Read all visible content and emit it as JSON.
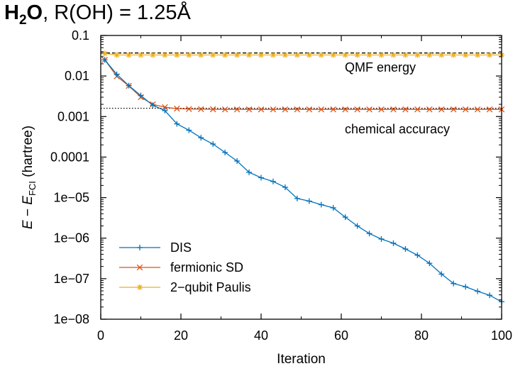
{
  "title": {
    "molecule_main": "H",
    "molecule_sub": "2",
    "molecule_tail": "O",
    "rest": ", R(OH) = 1.25Å"
  },
  "chart_data": {
    "type": "line",
    "title": "H2O, R(OH) = 1.25Å",
    "xlabel": "Iteration",
    "ylabel": "E − E_FCI (hartree)",
    "ylabel_parts": {
      "var": "E",
      "op": " − ",
      "var2": "E",
      "sub": "FCI",
      "unit": " (hartree)"
    },
    "xlim": [
      0,
      100
    ],
    "ylim": [
      1e-08,
      0.1
    ],
    "yscale": "log",
    "grid": false,
    "x_ticks": [
      0,
      20,
      40,
      60,
      80,
      100
    ],
    "x_tick_labels": [
      "0",
      "20",
      "40",
      "60",
      "80",
      "100"
    ],
    "y_ticks": [
      0.1,
      0.01,
      0.001,
      0.0001,
      1e-05,
      1e-06,
      1e-07,
      1e-08
    ],
    "y_tick_labels": [
      "0.1",
      "0.01",
      "0.001",
      "0.0001",
      "1e−05",
      "1e−06",
      "1e−07",
      "1e−08"
    ],
    "legend_position": "bottom-left",
    "reference_lines": [
      {
        "label": "QMF energy",
        "y": 0.037,
        "style": "dashed",
        "color": "#000000"
      },
      {
        "label": "chemical accuracy",
        "y": 0.0016,
        "style": "dotted",
        "color": "#000000"
      }
    ],
    "series": [
      {
        "name": "DIS",
        "color": "#0072bd",
        "marker": "plus",
        "x": [
          1,
          4,
          7,
          10,
          13,
          16,
          19,
          22,
          25,
          28,
          31,
          34,
          37,
          40,
          43,
          46,
          49,
          52,
          55,
          58,
          61,
          64,
          67,
          70,
          73,
          76,
          79,
          82,
          85,
          88,
          91,
          94,
          97,
          100
        ],
        "y": [
          0.025,
          0.011,
          0.0058,
          0.0033,
          0.0019,
          0.0014,
          0.00066,
          0.00046,
          0.0003,
          0.00021,
          0.00013,
          8e-05,
          4.2e-05,
          3.1e-05,
          2.5e-05,
          1.8e-05,
          9.5e-06,
          8.2e-06,
          6.7e-06,
          5.6e-06,
          3.3e-06,
          2e-06,
          1.3e-06,
          9.5e-07,
          7.5e-07,
          5.4e-07,
          3.8e-07,
          2.4e-07,
          1.3e-07,
          7.6e-08,
          6.3e-08,
          4.9e-08,
          3.9e-08,
          2.7e-08
        ]
      },
      {
        "name": "fermionic SD",
        "color": "#d95319",
        "marker": "cross",
        "x": [
          1,
          4,
          7,
          10,
          13,
          16,
          19,
          22,
          25,
          28,
          31,
          34,
          37,
          40,
          43,
          46,
          49,
          52,
          55,
          58,
          61,
          64,
          67,
          70,
          73,
          76,
          79,
          82,
          85,
          88,
          91,
          94,
          97,
          100
        ],
        "y": [
          0.025,
          0.0098,
          0.0057,
          0.003,
          0.002,
          0.0017,
          0.00157,
          0.00153,
          0.00152,
          0.00151,
          0.0015,
          0.0015,
          0.0015,
          0.0015,
          0.0015,
          0.0015,
          0.0015,
          0.0015,
          0.0015,
          0.0015,
          0.0015,
          0.0015,
          0.0015,
          0.0015,
          0.0015,
          0.0015,
          0.0015,
          0.0015,
          0.0015,
          0.0015,
          0.0015,
          0.0015,
          0.0015,
          0.0015
        ]
      },
      {
        "name": "2−qubit Paulis",
        "color": "#edb120",
        "marker": "asterisk",
        "x": [
          1,
          4,
          7,
          10,
          13,
          16,
          19,
          22,
          25,
          28,
          31,
          34,
          37,
          40,
          43,
          46,
          49,
          52,
          55,
          58,
          61,
          64,
          67,
          70,
          73,
          76,
          79,
          82,
          85,
          88,
          91,
          94,
          97,
          100
        ],
        "y": [
          0.036,
          0.033,
          0.033,
          0.033,
          0.033,
          0.033,
          0.033,
          0.033,
          0.033,
          0.033,
          0.033,
          0.033,
          0.033,
          0.033,
          0.033,
          0.033,
          0.033,
          0.033,
          0.033,
          0.033,
          0.033,
          0.033,
          0.033,
          0.033,
          0.033,
          0.033,
          0.033,
          0.033,
          0.033,
          0.033,
          0.033,
          0.033,
          0.033,
          0.033
        ]
      }
    ]
  }
}
